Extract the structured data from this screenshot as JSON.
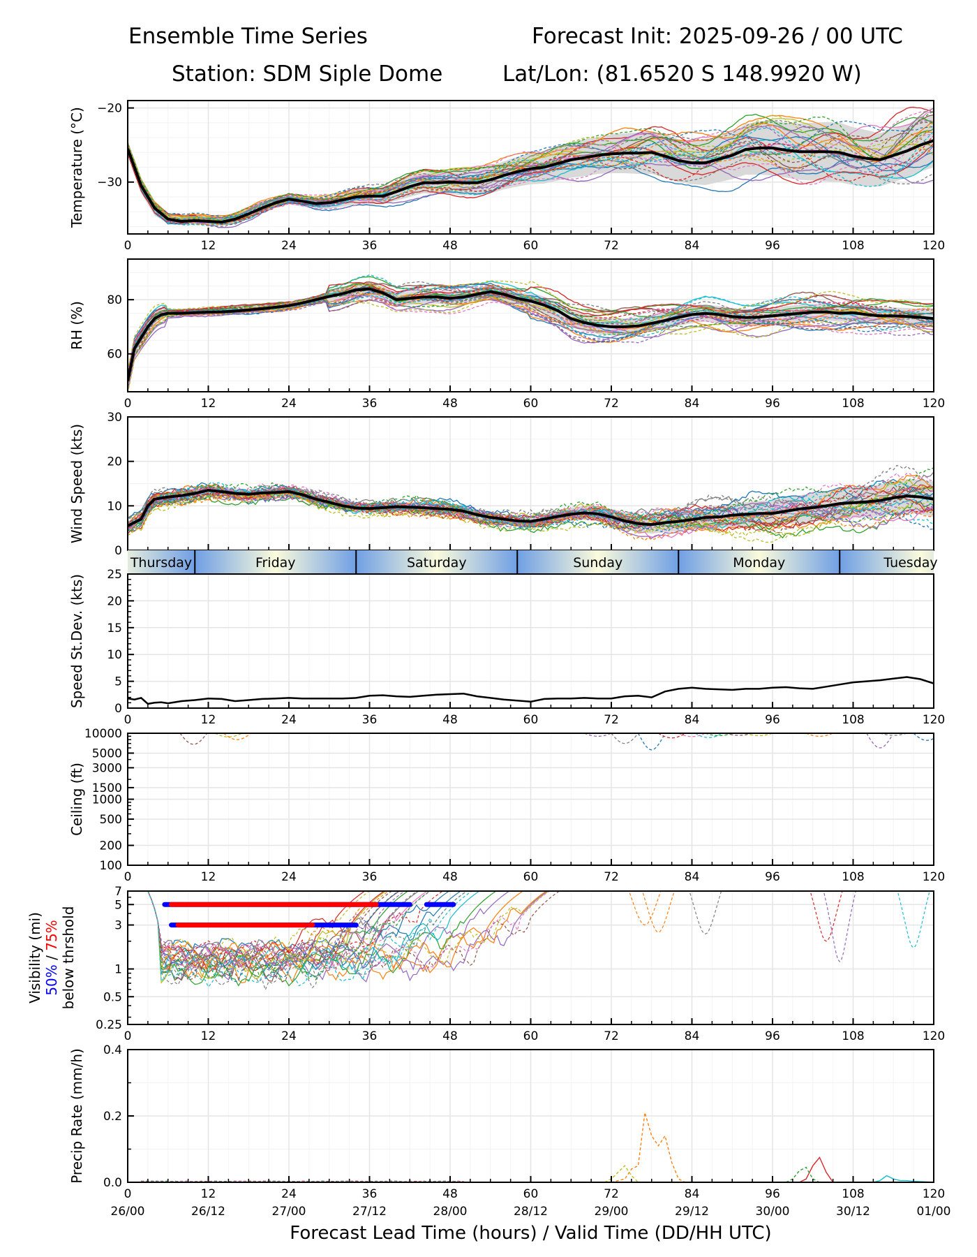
{
  "header": {
    "title_left": "Ensemble Time Series",
    "title_right": "Forecast Init: 2025-09-26 / 00 UTC",
    "station": "Station: SDM  Siple Dome",
    "latlon": "Lat/Lon: (81.6520 S 148.9920 W)"
  },
  "colors": {
    "mean": "#000000",
    "spread": "#d9d9d9",
    "grid": "#e5e5e5",
    "vis50": "#0000ff",
    "vis75": "#ff0000",
    "members": [
      "#1f77b4",
      "#ff7f0e",
      "#2ca02c",
      "#d62728",
      "#9467bd",
      "#8c564b",
      "#e377c2",
      "#7f7f7f",
      "#bcbd22",
      "#17becf"
    ]
  },
  "chart_data": [
    {
      "type": "line",
      "id": "temperature",
      "ylabel": "Temperature (°C)",
      "xlim": [
        0,
        120
      ],
      "ylim": [
        -37,
        -19
      ],
      "yticks": [
        -20,
        -30
      ],
      "ytick_labels": [
        "−20",
        "−30"
      ],
      "xticks": [
        0,
        12,
        24,
        36,
        48,
        60,
        72,
        84,
        96,
        108,
        120
      ],
      "grid": true,
      "mean": {
        "x": [
          0,
          2,
          4,
          6,
          8,
          10,
          12,
          14,
          16,
          18,
          20,
          22,
          24,
          26,
          28,
          30,
          32,
          34,
          36,
          38,
          40,
          42,
          44,
          46,
          48,
          50,
          52,
          54,
          56,
          58,
          60,
          62,
          64,
          66,
          68,
          70,
          72,
          74,
          76,
          78,
          80,
          82,
          84,
          86,
          88,
          90,
          92,
          94,
          96,
          98,
          100,
          102,
          104,
          106,
          108,
          110,
          112,
          114,
          116,
          118,
          120
        ],
        "y": [
          -25.5,
          -30.5,
          -33.5,
          -35,
          -35.3,
          -35.2,
          -35.3,
          -35.4,
          -35,
          -34.3,
          -33.5,
          -32.8,
          -32.3,
          -32.6,
          -32.9,
          -32.8,
          -32.4,
          -32,
          -31.9,
          -31.9,
          -31.3,
          -30.6,
          -30.1,
          -30.1,
          -30,
          -30.1,
          -30.1,
          -29.7,
          -29.1,
          -28.6,
          -28.2,
          -28,
          -27.5,
          -27,
          -26.7,
          -26.4,
          -26.2,
          -26.1,
          -26.1,
          -26,
          -26.5,
          -27.1,
          -27.4,
          -27.4,
          -26.9,
          -26.4,
          -25.6,
          -25.4,
          -25.4,
          -25.7,
          -25.9,
          -25.9,
          -25.9,
          -26,
          -26.5,
          -26.8,
          -27,
          -26.4,
          -25.8,
          -25,
          -24.4
        ]
      },
      "spread": {
        "lower": [
          -26.5,
          -31.5,
          -34.5,
          -35.6,
          -35.8,
          -35.8,
          -35.8,
          -35.9,
          -35.6,
          -35,
          -34.2,
          -33.5,
          -33,
          -33.3,
          -33.6,
          -33.6,
          -33.3,
          -33,
          -33,
          -33,
          -32.5,
          -32,
          -31.5,
          -31.6,
          -31.6,
          -31.8,
          -31.8,
          -31.5,
          -31,
          -30.6,
          -30.3,
          -30.2,
          -29.8,
          -29.4,
          -29.2,
          -28.9,
          -28.8,
          -28.8,
          -28.9,
          -28.9,
          -29.4,
          -30,
          -30.3,
          -30.4,
          -30,
          -29.6,
          -29,
          -29,
          -29.1,
          -29.4,
          -29.7,
          -29.8,
          -29.9,
          -30,
          -30.4,
          -30.6,
          -30.6,
          -30,
          -29.4,
          -28.6,
          -28
        ],
        "upper": [
          -24.5,
          -29.5,
          -32.5,
          -34.4,
          -34.8,
          -34.6,
          -34.8,
          -34.9,
          -34.4,
          -33.6,
          -32.8,
          -32.1,
          -31.6,
          -31.9,
          -32.2,
          -32,
          -31.5,
          -31,
          -30.8,
          -30.8,
          -30.1,
          -29.2,
          -28.7,
          -28.6,
          -28.4,
          -28.4,
          -28.4,
          -27.9,
          -27.2,
          -26.6,
          -26.1,
          -25.8,
          -25.2,
          -24.6,
          -24.2,
          -23.9,
          -23.6,
          -23.4,
          -23.3,
          -23.1,
          -23.6,
          -24.2,
          -24.5,
          -24.4,
          -23.8,
          -23.2,
          -22.2,
          -21.8,
          -21.7,
          -22,
          -22.1,
          -22,
          -21.9,
          -22,
          -22.6,
          -23,
          -23.4,
          -22.8,
          -22.2,
          -21.4,
          -20.8
        ]
      },
      "members": 30
    },
    {
      "type": "line",
      "id": "rh",
      "ylabel": "RH (%)",
      "xlim": [
        0,
        120
      ],
      "ylim": [
        46,
        95
      ],
      "yticks": [
        60,
        80
      ],
      "ytick_labels": [
        "60",
        "80"
      ],
      "xticks": [
        0,
        12,
        24,
        36,
        48,
        60,
        72,
        84,
        96,
        108,
        120
      ],
      "grid": true,
      "mean": {
        "x": [
          0,
          1,
          2,
          3,
          4,
          5,
          6,
          8,
          10,
          12,
          14,
          16,
          18,
          20,
          22,
          24,
          26,
          28,
          30,
          32,
          34,
          36,
          38,
          40,
          42,
          44,
          46,
          48,
          50,
          52,
          54,
          56,
          58,
          60,
          62,
          64,
          66,
          68,
          70,
          72,
          74,
          76,
          78,
          80,
          82,
          84,
          86,
          88,
          90,
          92,
          94,
          96,
          98,
          100,
          102,
          104,
          106,
          108,
          110,
          112,
          114,
          116,
          118,
          120
        ],
        "y": [
          50,
          62,
          66,
          70,
          73,
          74.5,
          75,
          75,
          75.2,
          75.4,
          75.5,
          75.8,
          76.2,
          76.7,
          77.2,
          77.8,
          78.8,
          80,
          81.2,
          82.2,
          83.6,
          84,
          82.5,
          80,
          80.5,
          81,
          81,
          80.5,
          81,
          82,
          83,
          82,
          80.5,
          79.5,
          78,
          76,
          73,
          71.5,
          70.5,
          70,
          70,
          70.3,
          71.3,
          72.3,
          73.5,
          74.5,
          75,
          74.5,
          73.8,
          73.4,
          73.6,
          74,
          74.5,
          75,
          75.4,
          75.5,
          75,
          75.2,
          74.5,
          74,
          74,
          73.8,
          73.5,
          73
        ]
      },
      "members": 30
    },
    {
      "type": "line",
      "id": "wind_speed",
      "ylabel": "Wind Speed (kts)",
      "xlim": [
        0,
        120
      ],
      "ylim": [
        0,
        30
      ],
      "yticks": [
        0,
        10,
        20,
        30
      ],
      "ytick_labels": [
        "0",
        "10",
        "20",
        "30"
      ],
      "xticks": [
        0,
        12,
        24,
        36,
        48,
        60,
        72,
        84,
        96,
        108,
        120
      ],
      "grid": true,
      "mean": {
        "x": [
          0,
          2,
          3,
          4,
          6,
          8,
          10,
          12,
          14,
          16,
          18,
          20,
          22,
          24,
          26,
          28,
          30,
          32,
          34,
          36,
          38,
          40,
          42,
          44,
          46,
          48,
          50,
          52,
          54,
          56,
          58,
          60,
          62,
          64,
          66,
          68,
          70,
          72,
          74,
          76,
          78,
          80,
          82,
          84,
          86,
          88,
          90,
          92,
          94,
          96,
          98,
          100,
          102,
          104,
          106,
          108,
          110,
          112,
          114,
          116,
          118,
          120
        ],
        "y": [
          5.5,
          7,
          10,
          11.5,
          12,
          12.3,
          12.8,
          13.5,
          13.2,
          12.8,
          12.6,
          12.9,
          13,
          13.2,
          12.5,
          11.5,
          10.8,
          10,
          9.5,
          9.4,
          9.6,
          9.8,
          9.7,
          9.6,
          9.4,
          9.2,
          8.8,
          8,
          7.4,
          7,
          6.6,
          6.5,
          7,
          7.6,
          8.1,
          8.4,
          8.2,
          7.5,
          6.6,
          6,
          5.8,
          6.2,
          6.5,
          6.9,
          7.4,
          7.5,
          7.9,
          8.1,
          8.3,
          8.3,
          8.8,
          9.3,
          9.6,
          10,
          10.5,
          10.7,
          10.9,
          11.2,
          11.8,
          12.2,
          12,
          11.5
        ]
      },
      "members": 30
    },
    {
      "type": "table",
      "id": "day_band",
      "days": [
        "Thursday",
        "Friday",
        "Saturday",
        "Sunday",
        "Monday",
        "Tuesday"
      ],
      "day_boundaries_hours": [
        10,
        34,
        58,
        82,
        106
      ]
    },
    {
      "type": "line",
      "id": "speed_stdev",
      "ylabel": "Speed St.Dev. (kts)",
      "xlim": [
        0,
        120
      ],
      "ylim": [
        0,
        25
      ],
      "yticks": [
        0,
        5,
        10,
        15,
        20,
        25
      ],
      "ytick_labels": [
        "0",
        "5",
        "10",
        "15",
        "20",
        "25"
      ],
      "xticks": [
        0,
        12,
        24,
        36,
        48,
        60,
        72,
        84,
        96,
        108,
        120
      ],
      "grid": true,
      "series": [
        {
          "name": "St.Dev.",
          "x": [
            0,
            1,
            2,
            3,
            4,
            5,
            6,
            8,
            10,
            12,
            14,
            16,
            18,
            20,
            22,
            24,
            26,
            28,
            30,
            32,
            34,
            36,
            38,
            40,
            42,
            44,
            46,
            48,
            50,
            52,
            54,
            56,
            58,
            60,
            62,
            64,
            66,
            68,
            70,
            72,
            74,
            76,
            78,
            80,
            82,
            84,
            86,
            88,
            90,
            92,
            94,
            96,
            98,
            100,
            102,
            104,
            106,
            108,
            110,
            112,
            114,
            116,
            118,
            120
          ],
          "y": [
            1.8,
            1.6,
            1.9,
            0.8,
            1.0,
            1.1,
            0.9,
            1.3,
            1.5,
            1.8,
            1.7,
            1.3,
            1.5,
            1.7,
            1.8,
            1.9,
            1.8,
            1.8,
            1.8,
            1.8,
            1.9,
            2.3,
            2.4,
            2.2,
            2.1,
            2.3,
            2.5,
            2.6,
            2.7,
            2.2,
            1.9,
            1.6,
            1.4,
            1.2,
            1.7,
            1.8,
            1.8,
            1.9,
            1.8,
            1.8,
            2.2,
            2.3,
            2.0,
            3.1,
            3.6,
            3.8,
            3.6,
            3.5,
            3.4,
            3.6,
            3.6,
            3.8,
            3.9,
            3.7,
            3.6,
            4.0,
            4.4,
            4.8,
            5.0,
            5.2,
            5.5,
            5.8,
            5.4,
            4.6
          ]
        }
      ]
    },
    {
      "type": "line",
      "id": "ceiling",
      "ylabel": "Ceiling (ft)",
      "xlim": [
        0,
        120
      ],
      "yscale": "log",
      "ylim": [
        100,
        10000
      ],
      "yticks": [
        100,
        200,
        500,
        1000,
        1500,
        3000,
        5000,
        10000
      ],
      "ytick_labels": [
        "100",
        "200",
        "500",
        "1000",
        "1500",
        "3000",
        "5000",
        "10000"
      ],
      "xticks": [
        0,
        12,
        24,
        36,
        48,
        60,
        72,
        84,
        96,
        108,
        120
      ],
      "grid": true,
      "members_note": "dips below 10000 ft near hours 9-10, 15-16, 70-80, 84-92, 108-120"
    },
    {
      "type": "line",
      "id": "visibility",
      "ylabel": "Visibility (mi)",
      "ylabel_line2": "50% / 75%",
      "ylabel_line3": "below thrshold",
      "ylabel_50": "50%",
      "ylabel_sep": " / ",
      "ylabel_75": "75%",
      "yscale": "log",
      "xlim": [
        0,
        120
      ],
      "ylim": [
        0.25,
        7
      ],
      "yticks": [
        0.25,
        0.5,
        1,
        3,
        5,
        7
      ],
      "ytick_labels": [
        "0.25",
        "0.5",
        "1",
        "3",
        "5",
        "7"
      ],
      "xticks": [
        0,
        12,
        24,
        36,
        48,
        60,
        72,
        84,
        96,
        108,
        120
      ],
      "grid": true,
      "threshold_bars": [
        {
          "threshold_mi": 5,
          "pct": 50,
          "start_h": 5.5,
          "end_h": 42
        },
        {
          "threshold_mi": 5,
          "pct": 50,
          "start_h": 44.5,
          "end_h": 48.5
        },
        {
          "threshold_mi": 5,
          "pct": 75,
          "start_h": 6.5,
          "end_h": 37
        },
        {
          "threshold_mi": 3,
          "pct": 50,
          "start_h": 6.5,
          "end_h": 34
        },
        {
          "threshold_mi": 3,
          "pct": 75,
          "start_h": 7.5,
          "end_h": 26.5
        },
        {
          "threshold_mi": 3,
          "pct": 75,
          "start_h": 27,
          "end_h": 27.5
        }
      ]
    },
    {
      "type": "line",
      "id": "precip",
      "ylabel": "Precip Rate (mm/h)",
      "xlim": [
        0,
        120
      ],
      "ylim": [
        0,
        0.4
      ],
      "yticks": [
        0,
        0.2,
        0.4
      ],
      "ytick_labels": [
        "0.0",
        "0.2",
        "0.4"
      ],
      "xticks": [
        0,
        12,
        24,
        36,
        48,
        60,
        72,
        84,
        96,
        108,
        120
      ],
      "xtick_labels_hours": [
        "0",
        "12",
        "24",
        "36",
        "48",
        "60",
        "72",
        "84",
        "96",
        "108",
        "120"
      ],
      "xtick_labels_valid": [
        "26/00",
        "26/12",
        "27/00",
        "27/12",
        "28/00",
        "28/12",
        "29/00",
        "29/12",
        "30/00",
        "30/12",
        "01/00"
      ],
      "xlabel": "Forecast Lead Time (hours) / Valid Time (DD/HH UTC)",
      "grid": true,
      "series": [
        {
          "name": "member-orange-dashed",
          "x": [
            72,
            74,
            75,
            76,
            77,
            78,
            79,
            80,
            81,
            82,
            83,
            84
          ],
          "y": [
            0,
            0.01,
            0.04,
            0.05,
            0.21,
            0.14,
            0.11,
            0.14,
            0.06,
            0.01,
            0,
            0
          ]
        },
        {
          "name": "member-olive-dashed",
          "x": [
            71,
            72,
            73,
            74,
            75,
            76
          ],
          "y": [
            0,
            0.01,
            0.03,
            0.05,
            0.02,
            0
          ]
        },
        {
          "name": "member-red",
          "x": [
            100,
            101,
            102,
            103,
            104,
            105
          ],
          "y": [
            0,
            0.01,
            0.05,
            0.075,
            0.03,
            0
          ]
        },
        {
          "name": "member-green-dashed",
          "x": [
            98,
            99,
            100,
            101,
            102,
            103
          ],
          "y": [
            0,
            0.01,
            0.035,
            0.045,
            0.01,
            0
          ]
        },
        {
          "name": "member-cyan",
          "x": [
            111,
            112,
            113,
            114,
            115,
            116,
            117,
            118,
            120
          ],
          "y": [
            0,
            0.005,
            0.02,
            0.01,
            0.005,
            0.005,
            0.003,
            0.002,
            0
          ]
        }
      ]
    }
  ]
}
